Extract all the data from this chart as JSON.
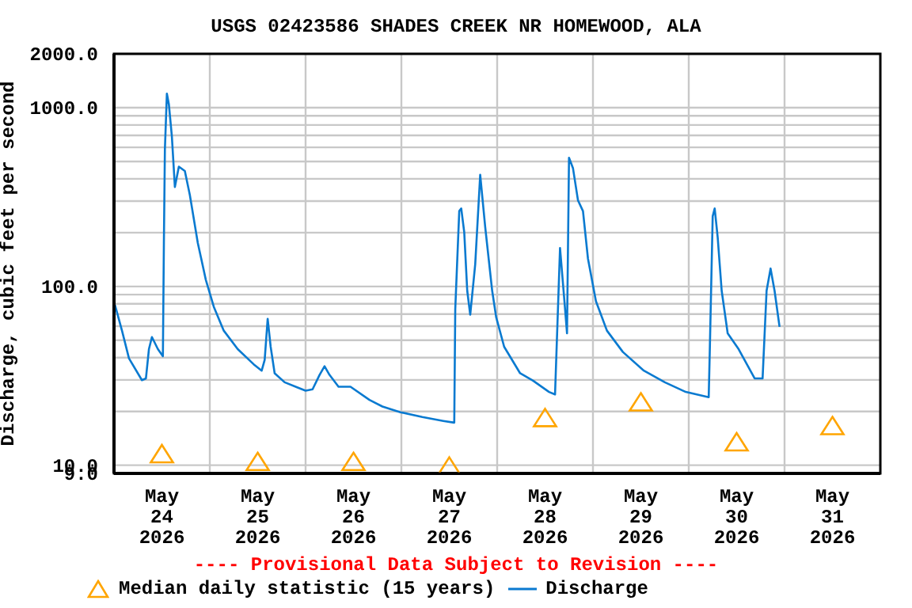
{
  "chart_data": {
    "type": "line",
    "title": "USGS 02423586 SHADES CREEK NR HOMEWOOD, ALA",
    "ylabel": "Discharge, cubic feet per second",
    "annotations": [
      "---- Provisional Data Subject to Revision ----"
    ],
    "log": "y",
    "grid": true,
    "legend": "bottom",
    "xlim": [
      "2026-05-24T00:00",
      "2026-06-01T00:00"
    ],
    "xticks": [
      {
        "value": "2026-05-24T12:00",
        "label": "May 24 2026"
      },
      {
        "value": "2026-05-25T00:00",
        "label": null
      },
      {
        "value": "2026-05-25T12:00",
        "label": "May 25 2026"
      },
      {
        "value": "2026-05-26T00:00",
        "label": null
      },
      {
        "value": "2026-05-26T12:00",
        "label": "May 26 2026"
      },
      {
        "value": "2026-05-27T00:00",
        "label": null
      },
      {
        "value": "2026-05-27T12:00",
        "label": "May 27 2026"
      },
      {
        "value": "2026-05-28T00:00",
        "label": null
      },
      {
        "value": "2026-05-28T12:00",
        "label": "May 28 2026"
      },
      {
        "value": "2026-05-29T00:00",
        "label": null
      },
      {
        "value": "2026-05-29T12:00",
        "label": "May 29 2026"
      },
      {
        "value": "2026-05-30T00:00",
        "label": null
      },
      {
        "value": "2026-05-30T12:00",
        "label": "May 30 2026"
      },
      {
        "value": "2026-05-31T00:00",
        "label": null
      },
      {
        "value": "2026-05-31T12:00",
        "label": "May 31 2026"
      }
    ],
    "ylim": [
      9,
      2000
    ],
    "yticks": [
      {
        "value": 9,
        "label": "9.0"
      },
      {
        "value": 10,
        "label": "10.0"
      },
      {
        "value": 20,
        "label": null
      },
      {
        "value": 30,
        "label": null
      },
      {
        "value": 40,
        "label": null
      },
      {
        "value": 50,
        "label": null
      },
      {
        "value": 60,
        "label": null
      },
      {
        "value": 70,
        "label": null
      },
      {
        "value": 80,
        "label": null
      },
      {
        "value": 90,
        "label": null
      },
      {
        "value": 100,
        "label": "100.0"
      },
      {
        "value": 200,
        "label": null
      },
      {
        "value": 300,
        "label": null
      },
      {
        "value": 400,
        "label": null
      },
      {
        "value": 500,
        "label": null
      },
      {
        "value": 600,
        "label": null
      },
      {
        "value": 700,
        "label": null
      },
      {
        "value": 800,
        "label": null
      },
      {
        "value": 900,
        "label": null
      },
      {
        "value": 1000,
        "label": "1000.0"
      },
      {
        "value": 2000,
        "label": "2000.0"
      }
    ],
    "series": [
      {
        "name": "Median daily statistic (15 years)",
        "type": "scatter",
        "marker": "triangle",
        "color": "#ffa500",
        "x": [
          "2026-05-24T12:00",
          "2026-05-25T12:00",
          "2026-05-26T12:00",
          "2026-05-27T12:00",
          "2026-05-28T12:00",
          "2026-05-29T12:00",
          "2026-05-30T12:00",
          "2026-05-31T12:00"
        ],
        "values": [
          11.5,
          10.4,
          10.4,
          9.8,
          18.3,
          22.4,
          13.4,
          16.5
        ]
      },
      {
        "name": "Discharge",
        "type": "line",
        "marker": "none",
        "line_style": "solid",
        "color": "#0a7ad0",
        "x": [
          "2026-05-24T00:15",
          "2026-05-24T02:00",
          "2026-05-24T03:45",
          "2026-05-24T07:00",
          "2026-05-24T08:00",
          "2026-05-24T08:45",
          "2026-05-24T09:30",
          "2026-05-24T11:00",
          "2026-05-24T12:15",
          "2026-05-24T12:30",
          "2026-05-24T12:45",
          "2026-05-24T13:15",
          "2026-05-24T13:45",
          "2026-05-24T14:30",
          "2026-05-24T15:15",
          "2026-05-24T16:15",
          "2026-05-24T17:45",
          "2026-05-24T19:00",
          "2026-05-24T21:00",
          "2026-05-24T23:00",
          "2026-05-25T01:00",
          "2026-05-25T03:30",
          "2026-05-25T07:00",
          "2026-05-25T11:00",
          "2026-05-25T13:00",
          "2026-05-25T13:45",
          "2026-05-25T14:30",
          "2026-05-25T15:15",
          "2026-05-25T16:15",
          "2026-05-25T18:45",
          "2026-05-25T22:00",
          "2026-05-26T00:00",
          "2026-05-26T01:45",
          "2026-05-26T03:30",
          "2026-05-26T04:45",
          "2026-05-26T06:00",
          "2026-05-26T08:15",
          "2026-05-26T11:15",
          "2026-05-26T16:00",
          "2026-05-26T19:15",
          "2026-05-26T23:45",
          "2026-05-27T05:15",
          "2026-05-27T10:30",
          "2026-05-27T13:15",
          "2026-05-27T13:30",
          "2026-05-27T14:30",
          "2026-05-27T15:00",
          "2026-05-27T15:45",
          "2026-05-27T16:30",
          "2026-05-27T17:15",
          "2026-05-27T18:30",
          "2026-05-27T19:45",
          "2026-05-27T21:00",
          "2026-05-27T22:45",
          "2026-05-27T23:45",
          "2026-05-28T01:45",
          "2026-05-28T05:45",
          "2026-05-28T09:00",
          "2026-05-28T13:00",
          "2026-05-28T14:30",
          "2026-05-28T15:45",
          "2026-05-28T16:45",
          "2026-05-28T17:30",
          "2026-05-28T18:00",
          "2026-05-28T19:00",
          "2026-05-28T20:15",
          "2026-05-28T21:30",
          "2026-05-28T22:45",
          "2026-05-29T00:45",
          "2026-05-29T03:30",
          "2026-05-29T07:30",
          "2026-05-29T12:45",
          "2026-05-29T18:00",
          "2026-05-29T23:15",
          "2026-05-30T05:00",
          "2026-05-30T05:15",
          "2026-05-30T06:00",
          "2026-05-30T06:30",
          "2026-05-30T07:15",
          "2026-05-30T08:15",
          "2026-05-30T09:45",
          "2026-05-30T12:30",
          "2026-05-30T16:30",
          "2026-05-30T18:30",
          "2026-05-30T19:30",
          "2026-05-30T20:30",
          "2026-05-30T21:30",
          "2026-05-30T22:45"
        ],
        "values": [
          78.6,
          56.6,
          39.6,
          29.9,
          30.6,
          44.6,
          52.1,
          44.6,
          40.7,
          175,
          582,
          1197,
          1043,
          690,
          360,
          468,
          442,
          325,
          175,
          109,
          77,
          56.6,
          44.6,
          36.7,
          33.8,
          38.8,
          65.9,
          46,
          32.7,
          29.1,
          27.2,
          26.1,
          26.6,
          32,
          35.8,
          32,
          27.5,
          27.5,
          23.2,
          21.3,
          19.8,
          18.6,
          17.7,
          17.3,
          74.6,
          264,
          273,
          201,
          94.6,
          69.5,
          133,
          421,
          215,
          94.6,
          67.3,
          46,
          32.7,
          29.7,
          25.7,
          24.9,
          164,
          88.3,
          54.7,
          525,
          458,
          303,
          264,
          143,
          82.6,
          56.6,
          43,
          33.8,
          29.1,
          25.7,
          24,
          41.6,
          247,
          273,
          188,
          94.6,
          54.7,
          44.6,
          30.6,
          30.6,
          94.6,
          126,
          94.6,
          59.4
        ]
      }
    ]
  }
}
